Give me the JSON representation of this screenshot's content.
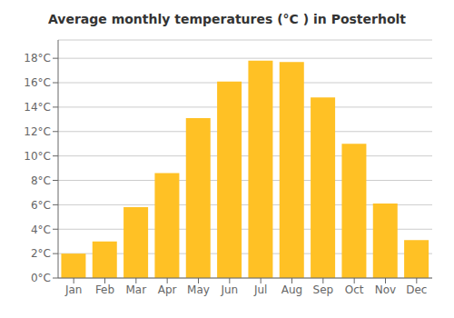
{
  "chart_data": {
    "type": "bar",
    "title": "Average monthly temperatures (°C ) in Posterholt",
    "categories": [
      "Jan",
      "Feb",
      "Mar",
      "Apr",
      "May",
      "Jun",
      "Jul",
      "Aug",
      "Sep",
      "Oct",
      "Nov",
      "Dec"
    ],
    "values": [
      2.0,
      3.0,
      5.8,
      8.6,
      13.1,
      16.1,
      17.8,
      17.7,
      14.8,
      11.0,
      6.1,
      3.1
    ],
    "color": "#FFC125",
    "ylim": [
      0,
      19.5
    ],
    "yticks": [
      {
        "value": 0,
        "label": "0°C"
      },
      {
        "value": 2,
        "label": "2°C"
      },
      {
        "value": 4,
        "label": "4°C"
      },
      {
        "value": 6,
        "label": "6°C"
      },
      {
        "value": 8,
        "label": "8°C"
      },
      {
        "value": 10,
        "label": "10°C"
      },
      {
        "value": 12,
        "label": "12°C"
      },
      {
        "value": 14,
        "label": "14°C"
      },
      {
        "value": 16,
        "label": "16°C"
      },
      {
        "value": 18,
        "label": "18°C"
      }
    ],
    "grid": true
  }
}
